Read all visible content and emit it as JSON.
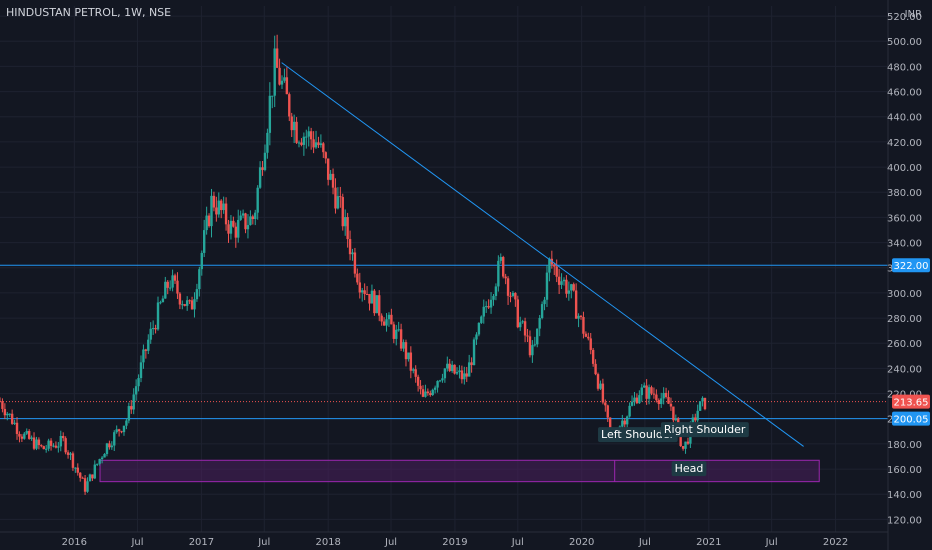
{
  "header": {
    "title": "HINDUSTAN PETROL, 1W, NSE",
    "currency": "INR"
  },
  "theme": {
    "background": "#131722",
    "grid": "#1e2230",
    "up": "#26a69a",
    "down": "#ef5350",
    "trendline": "#2196f3",
    "zone_fill": "#4a1f5c",
    "zone_stroke": "#9c27b0"
  },
  "chart_data": {
    "type": "candlestick",
    "title": "HINDUSTAN PETROL, 1W, NSE",
    "ylabel": "INR",
    "ylim": [
      110,
      528
    ],
    "xlim": [
      "2015-06-01",
      "2022-06-01"
    ],
    "y_ticks": [
      120,
      140,
      160,
      180,
      200,
      220,
      240,
      260,
      280,
      300,
      320,
      340,
      360,
      380,
      400,
      420,
      440,
      460,
      480,
      500,
      520
    ],
    "x_ticks": [
      {
        "label": "2016",
        "date": "2016-01-01"
      },
      {
        "label": "Jul",
        "date": "2016-07-01"
      },
      {
        "label": "2017",
        "date": "2017-01-01"
      },
      {
        "label": "Jul",
        "date": "2017-07-01"
      },
      {
        "label": "2018",
        "date": "2018-01-01"
      },
      {
        "label": "Jul",
        "date": "2018-07-01"
      },
      {
        "label": "2019",
        "date": "2019-01-01"
      },
      {
        "label": "Jul",
        "date": "2019-07-01"
      },
      {
        "label": "2020",
        "date": "2020-01-01"
      },
      {
        "label": "Jul",
        "date": "2020-07-01"
      },
      {
        "label": "2021",
        "date": "2021-01-01"
      },
      {
        "label": "Jul",
        "date": "2021-07-01"
      },
      {
        "label": "2022",
        "date": "2022-01-01"
      }
    ],
    "price_path": [
      [
        "2015-06-01",
        214
      ],
      [
        "2015-08-01",
        188
      ],
      [
        "2015-10-01",
        176
      ],
      [
        "2015-12-01",
        182
      ],
      [
        "2016-02-01",
        145
      ],
      [
        "2016-04-01",
        178
      ],
      [
        "2016-06-01",
        200
      ],
      [
        "2016-08-01",
        262
      ],
      [
        "2016-10-01",
        310
      ],
      [
        "2016-12-01",
        286
      ],
      [
        "2017-02-01",
        375
      ],
      [
        "2017-04-01",
        350
      ],
      [
        "2017-06-01",
        360
      ],
      [
        "2017-08-01",
        482
      ],
      [
        "2017-10-01",
        430
      ],
      [
        "2017-12-01",
        420
      ],
      [
        "2018-02-01",
        370
      ],
      [
        "2018-04-01",
        310
      ],
      [
        "2018-06-01",
        285
      ],
      [
        "2018-08-01",
        260
      ],
      [
        "2018-10-01",
        215
      ],
      [
        "2018-12-01",
        240
      ],
      [
        "2019-02-01",
        232
      ],
      [
        "2019-04-01",
        290
      ],
      [
        "2019-05-15",
        325
      ],
      [
        "2019-07-01",
        280
      ],
      [
        "2019-08-15",
        250
      ],
      [
        "2019-10-01",
        325
      ],
      [
        "2019-12-01",
        300
      ],
      [
        "2020-02-01",
        250
      ],
      [
        "2020-03-25",
        185
      ],
      [
        "2020-05-01",
        200
      ],
      [
        "2020-06-15",
        222
      ],
      [
        "2020-08-01",
        220
      ],
      [
        "2020-09-15",
        210
      ],
      [
        "2020-10-20",
        175
      ],
      [
        "2020-12-01",
        208
      ],
      [
        "2020-12-25",
        213.65
      ]
    ],
    "horizontal_levels": [
      {
        "value": 322.0,
        "label": "322.00"
      },
      {
        "value": 200.05,
        "label": "200.05"
      }
    ],
    "current_price": {
      "value": 213.65,
      "label": "213.65"
    },
    "trendline": {
      "from": [
        "2017-08-20",
        483
      ],
      "to": [
        "2021-10-01",
        178
      ]
    },
    "zone": {
      "from": "2016-03-15",
      "to": "2021-11-15",
      "low": 150,
      "high": 167
    },
    "marker_line_date": "2020-04-05",
    "annotations": [
      {
        "text": "Left Shoulder",
        "date": "2020-06-10",
        "value": 187
      },
      {
        "text": "Right Shoulder",
        "date": "2020-12-20",
        "value": 191
      },
      {
        "text": "Head",
        "date": "2020-11-05",
        "value": 160
      }
    ]
  }
}
